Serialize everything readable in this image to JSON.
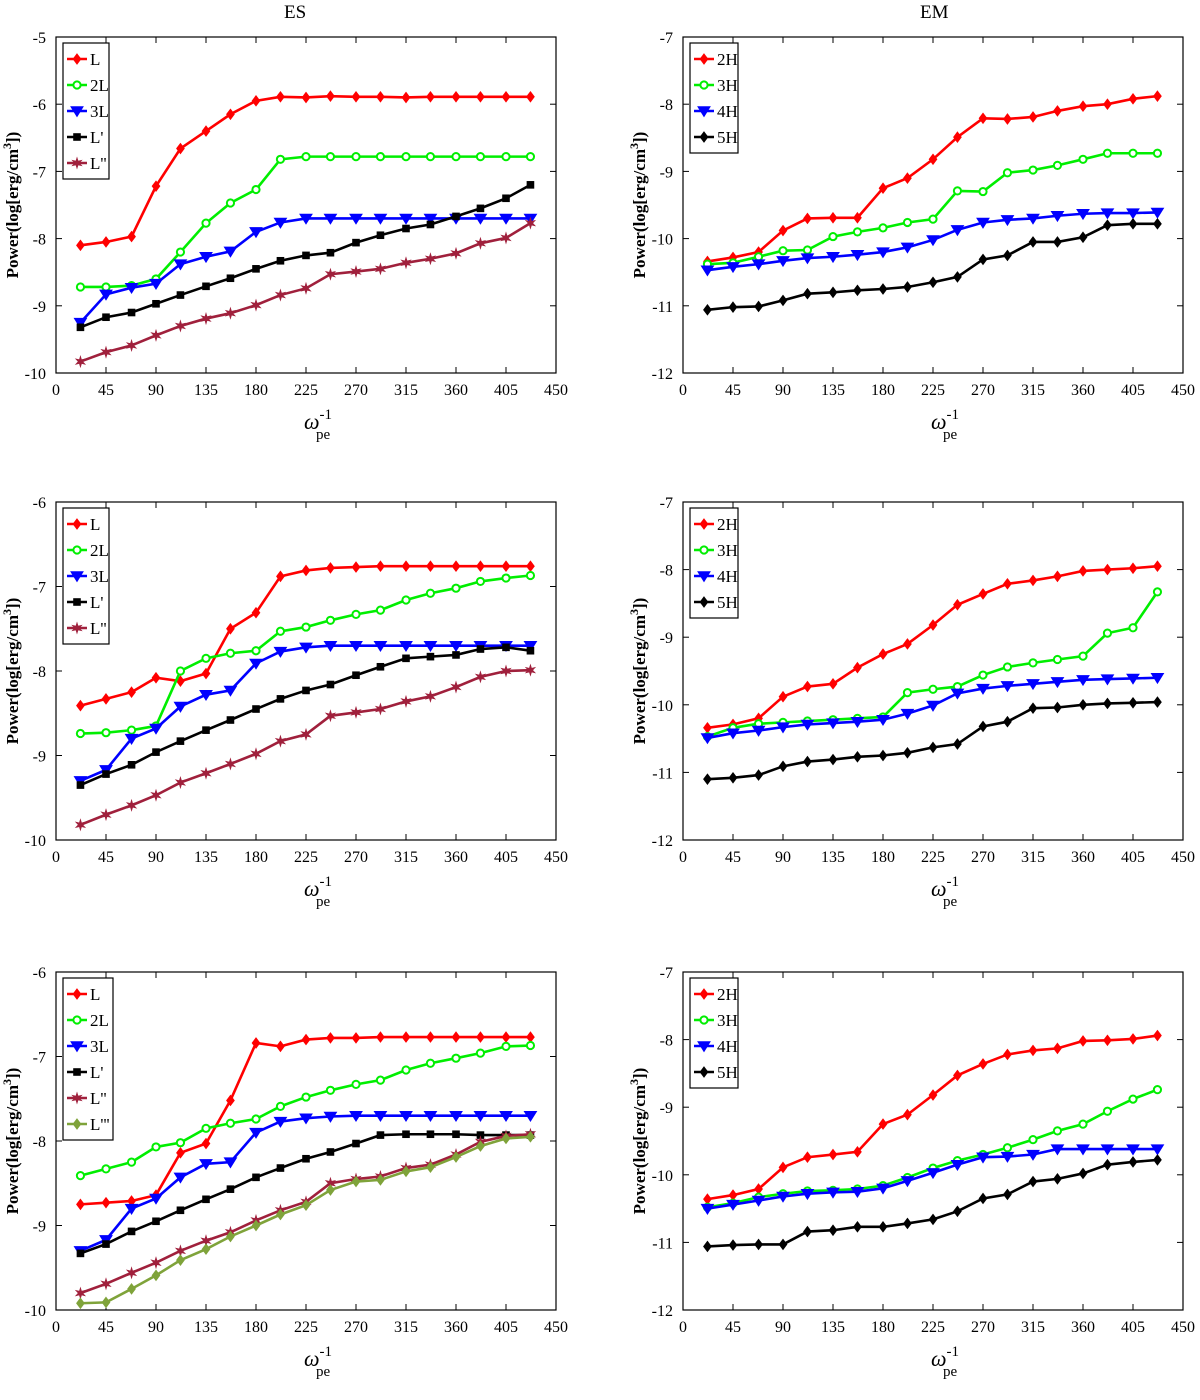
{
  "column_titles": [
    "ES",
    "EM"
  ],
  "chart_data": [
    {
      "type": "line",
      "title": "ES",
      "xlabel": "ω_pe^-1",
      "ylabel": "Power(log[erg/cm^3])",
      "xlim": [
        0,
        450
      ],
      "ylim": [
        -10,
        -5
      ],
      "xticks": [
        0,
        45,
        90,
        135,
        180,
        225,
        270,
        315,
        360,
        405,
        450
      ],
      "yticks": [
        -10,
        -9,
        -8,
        -7,
        -6,
        -5
      ],
      "grid": false,
      "legend_position": "top-left",
      "x": [
        22,
        45,
        68,
        90,
        112,
        135,
        157,
        180,
        202,
        225,
        247,
        270,
        292,
        315,
        337,
        360,
        382,
        405,
        427
      ],
      "series": [
        {
          "name": "L",
          "color": "#ff0000",
          "marker": "diamond",
          "values": [
            -8.1,
            -8.05,
            -7.97,
            -7.22,
            -6.66,
            -6.4,
            -6.15,
            -5.95,
            -5.89,
            -5.9,
            -5.88,
            -5.89,
            -5.89,
            -5.9,
            -5.89,
            -5.89,
            -5.89,
            -5.89,
            -5.89
          ]
        },
        {
          "name": "2L",
          "color": "#00ee00",
          "marker": "circle",
          "values": [
            -8.72,
            -8.72,
            -8.7,
            -8.6,
            -8.2,
            -7.77,
            -7.47,
            -7.27,
            -6.82,
            -6.78,
            -6.78,
            -6.78,
            -6.78,
            -6.78,
            -6.78,
            -6.78,
            -6.78,
            -6.78,
            -6.78
          ]
        },
        {
          "name": "3L",
          "color": "#0000ff",
          "marker": "triangle-down",
          "values": [
            -9.25,
            -8.83,
            -8.73,
            -8.67,
            -8.38,
            -8.27,
            -8.19,
            -7.9,
            -7.76,
            -7.7,
            -7.7,
            -7.7,
            -7.7,
            -7.7,
            -7.7,
            -7.7,
            -7.7,
            -7.7,
            -7.7
          ]
        },
        {
          "name": "L'",
          "color": "#000000",
          "marker": "square",
          "values": [
            -9.32,
            -9.17,
            -9.1,
            -8.97,
            -8.84,
            -8.71,
            -8.59,
            -8.45,
            -8.33,
            -8.25,
            -8.21,
            -8.06,
            -7.95,
            -7.85,
            -7.79,
            -7.67,
            -7.55,
            -7.4,
            -7.2
          ]
        },
        {
          "name": "L''",
          "color": "#a0203c",
          "marker": "star",
          "values": [
            -9.83,
            -9.69,
            -9.59,
            -9.44,
            -9.3,
            -9.19,
            -9.11,
            -8.99,
            -8.84,
            -8.74,
            -8.53,
            -8.49,
            -8.45,
            -8.36,
            -8.3,
            -8.22,
            -8.07,
            -7.99,
            -7.77
          ]
        }
      ]
    },
    {
      "type": "line",
      "title": "EM",
      "xlabel": "ω_pe^-1",
      "ylabel": "Power(log[erg/cm^3])",
      "xlim": [
        0,
        450
      ],
      "ylim": [
        -12,
        -7
      ],
      "xticks": [
        0,
        45,
        90,
        135,
        180,
        225,
        270,
        315,
        360,
        405,
        450
      ],
      "yticks": [
        -12,
        -11,
        -10,
        -9,
        -8,
        -7
      ],
      "grid": false,
      "legend_position": "top-left",
      "x": [
        22,
        45,
        68,
        90,
        112,
        135,
        157,
        180,
        202,
        225,
        247,
        270,
        292,
        315,
        337,
        360,
        382,
        405,
        427
      ],
      "series": [
        {
          "name": "2H",
          "color": "#ff0000",
          "marker": "diamond",
          "values": [
            -10.34,
            -10.28,
            -10.2,
            -9.88,
            -9.7,
            -9.69,
            -9.69,
            -9.25,
            -9.1,
            -8.82,
            -8.49,
            -8.21,
            -8.22,
            -8.19,
            -8.1,
            -8.03,
            -8.0,
            -7.92,
            -7.88
          ]
        },
        {
          "name": "3H",
          "color": "#00ee00",
          "marker": "circle",
          "values": [
            -10.38,
            -10.36,
            -10.27,
            -10.18,
            -10.17,
            -9.97,
            -9.9,
            -9.84,
            -9.76,
            -9.71,
            -9.29,
            -9.3,
            -9.02,
            -8.98,
            -8.91,
            -8.82,
            -8.73,
            -8.73,
            -8.73
          ]
        },
        {
          "name": "4H",
          "color": "#0000ff",
          "marker": "triangle-down",
          "values": [
            -10.47,
            -10.42,
            -10.38,
            -10.33,
            -10.29,
            -10.27,
            -10.24,
            -10.2,
            -10.13,
            -10.02,
            -9.87,
            -9.76,
            -9.72,
            -9.7,
            -9.66,
            -9.63,
            -9.62,
            -9.62,
            -9.61
          ]
        },
        {
          "name": "5H",
          "color": "#000000",
          "marker": "diamond",
          "values": [
            -11.06,
            -11.02,
            -11.01,
            -10.92,
            -10.82,
            -10.8,
            -10.77,
            -10.75,
            -10.72,
            -10.65,
            -10.57,
            -10.31,
            -10.25,
            -10.05,
            -10.05,
            -9.98,
            -9.8,
            -9.78,
            -9.78
          ]
        }
      ]
    },
    {
      "type": "line",
      "xlabel": "ω_pe^-1",
      "ylabel": "Power(log[erg/cm^3])",
      "xlim": [
        0,
        450
      ],
      "ylim": [
        -10,
        -6
      ],
      "xticks": [
        0,
        45,
        90,
        135,
        180,
        225,
        270,
        315,
        360,
        405,
        450
      ],
      "yticks": [
        -10,
        -9,
        -8,
        -7,
        -6
      ],
      "grid": false,
      "legend_position": "top-left",
      "x": [
        22,
        45,
        68,
        90,
        112,
        135,
        157,
        180,
        202,
        225,
        247,
        270,
        292,
        315,
        337,
        360,
        382,
        405,
        427
      ],
      "series": [
        {
          "name": "L",
          "color": "#ff0000",
          "marker": "diamond",
          "values": [
            -8.41,
            -8.33,
            -8.25,
            -8.08,
            -8.12,
            -8.03,
            -7.5,
            -7.31,
            -6.88,
            -6.81,
            -6.78,
            -6.77,
            -6.76,
            -6.76,
            -6.76,
            -6.76,
            -6.76,
            -6.76,
            -6.76
          ]
        },
        {
          "name": "2L",
          "color": "#00ee00",
          "marker": "circle",
          "values": [
            -8.74,
            -8.73,
            -8.7,
            -8.65,
            -8.0,
            -7.85,
            -7.79,
            -7.76,
            -7.53,
            -7.48,
            -7.4,
            -7.33,
            -7.28,
            -7.16,
            -7.08,
            -7.02,
            -6.94,
            -6.9,
            -6.87
          ]
        },
        {
          "name": "3L",
          "color": "#0000ff",
          "marker": "triangle-down",
          "values": [
            -9.3,
            -9.17,
            -8.8,
            -8.68,
            -8.42,
            -8.28,
            -8.23,
            -7.91,
            -7.77,
            -7.72,
            -7.7,
            -7.7,
            -7.7,
            -7.7,
            -7.7,
            -7.7,
            -7.7,
            -7.7,
            -7.7
          ]
        },
        {
          "name": "L'",
          "color": "#000000",
          "marker": "square",
          "values": [
            -9.35,
            -9.22,
            -9.11,
            -8.96,
            -8.83,
            -8.7,
            -8.58,
            -8.45,
            -8.33,
            -8.23,
            -8.16,
            -8.05,
            -7.95,
            -7.85,
            -7.83,
            -7.81,
            -7.74,
            -7.72,
            -7.76
          ]
        },
        {
          "name": "L''",
          "color": "#a0203c",
          "marker": "star",
          "values": [
            -9.82,
            -9.7,
            -9.59,
            -9.47,
            -9.32,
            -9.21,
            -9.1,
            -8.98,
            -8.83,
            -8.75,
            -8.53,
            -8.49,
            -8.45,
            -8.36,
            -8.3,
            -8.19,
            -8.07,
            -8.0,
            -7.99
          ]
        }
      ]
    },
    {
      "type": "line",
      "xlabel": "ω_pe^-1",
      "ylabel": "Power(log[erg/cm^3])",
      "xlim": [
        0,
        450
      ],
      "ylim": [
        -12,
        -7
      ],
      "xticks": [
        0,
        45,
        90,
        135,
        180,
        225,
        270,
        315,
        360,
        405,
        450
      ],
      "yticks": [
        -12,
        -11,
        -10,
        -9,
        -8,
        -7
      ],
      "grid": false,
      "legend_position": "top-left",
      "x": [
        22,
        45,
        68,
        90,
        112,
        135,
        157,
        180,
        202,
        225,
        247,
        270,
        292,
        315,
        337,
        360,
        382,
        405,
        427
      ],
      "series": [
        {
          "name": "2H",
          "color": "#ff0000",
          "marker": "diamond",
          "values": [
            -10.34,
            -10.29,
            -10.2,
            -9.88,
            -9.73,
            -9.69,
            -9.45,
            -9.25,
            -9.1,
            -8.82,
            -8.52,
            -8.36,
            -8.21,
            -8.16,
            -8.1,
            -8.02,
            -8.0,
            -7.98,
            -7.95
          ]
        },
        {
          "name": "3H",
          "color": "#00ee00",
          "marker": "circle",
          "values": [
            -10.47,
            -10.34,
            -10.28,
            -10.26,
            -10.24,
            -10.22,
            -10.2,
            -10.18,
            -9.82,
            -9.77,
            -9.73,
            -9.56,
            -9.44,
            -9.38,
            -9.33,
            -9.28,
            -8.94,
            -8.86,
            -8.33
          ]
        },
        {
          "name": "4H",
          "color": "#0000ff",
          "marker": "triangle-down",
          "values": [
            -10.49,
            -10.42,
            -10.38,
            -10.33,
            -10.29,
            -10.27,
            -10.25,
            -10.22,
            -10.13,
            -10.01,
            -9.83,
            -9.76,
            -9.72,
            -9.69,
            -9.66,
            -9.63,
            -9.62,
            -9.61,
            -9.6
          ]
        },
        {
          "name": "5H",
          "color": "#000000",
          "marker": "diamond",
          "values": [
            -11.1,
            -11.08,
            -11.04,
            -10.91,
            -10.84,
            -10.81,
            -10.77,
            -10.75,
            -10.71,
            -10.63,
            -10.58,
            -10.32,
            -10.25,
            -10.05,
            -10.04,
            -10.0,
            -9.98,
            -9.97,
            -9.96
          ]
        }
      ]
    },
    {
      "type": "line",
      "xlabel": "ω_pe^-1",
      "ylabel": "Power(log[erg/cm^3])",
      "xlim": [
        0,
        450
      ],
      "ylim": [
        -10,
        -6
      ],
      "xticks": [
        0,
        45,
        90,
        135,
        180,
        225,
        270,
        315,
        360,
        405,
        450
      ],
      "yticks": [
        -10,
        -9,
        -8,
        -7,
        -6
      ],
      "grid": false,
      "legend_position": "top-left",
      "x": [
        22,
        45,
        68,
        90,
        112,
        135,
        157,
        180,
        202,
        225,
        247,
        270,
        292,
        315,
        337,
        360,
        382,
        405,
        427
      ],
      "series": [
        {
          "name": "L",
          "color": "#ff0000",
          "marker": "diamond",
          "values": [
            -8.75,
            -8.73,
            -8.71,
            -8.64,
            -8.14,
            -8.03,
            -7.52,
            -6.84,
            -6.88,
            -6.8,
            -6.78,
            -6.78,
            -6.77,
            -6.77,
            -6.77,
            -6.77,
            -6.77,
            -6.77,
            -6.77
          ]
        },
        {
          "name": "2L",
          "color": "#00ee00",
          "marker": "circle",
          "values": [
            -8.41,
            -8.33,
            -8.25,
            -8.07,
            -8.02,
            -7.85,
            -7.79,
            -7.74,
            -7.59,
            -7.48,
            -7.4,
            -7.33,
            -7.28,
            -7.16,
            -7.08,
            -7.02,
            -6.96,
            -6.88,
            -6.87
          ]
        },
        {
          "name": "3L",
          "color": "#0000ff",
          "marker": "triangle-down",
          "values": [
            -9.3,
            -9.17,
            -8.8,
            -8.68,
            -8.43,
            -8.27,
            -8.25,
            -7.9,
            -7.77,
            -7.73,
            -7.71,
            -7.7,
            -7.7,
            -7.7,
            -7.7,
            -7.7,
            -7.7,
            -7.7,
            -7.7
          ]
        },
        {
          "name": "L'",
          "color": "#000000",
          "marker": "square",
          "values": [
            -9.33,
            -9.22,
            -9.07,
            -8.95,
            -8.82,
            -8.69,
            -8.57,
            -8.43,
            -8.32,
            -8.21,
            -8.13,
            -8.03,
            -7.93,
            -7.92,
            -7.92,
            -7.92,
            -7.93,
            -7.93,
            -7.93
          ]
        },
        {
          "name": "L''",
          "color": "#a0203c",
          "marker": "star",
          "values": [
            -9.8,
            -9.69,
            -9.56,
            -9.44,
            -9.3,
            -9.18,
            -9.08,
            -8.94,
            -8.82,
            -8.72,
            -8.5,
            -8.45,
            -8.42,
            -8.32,
            -8.28,
            -8.16,
            -8.01,
            -7.94,
            -7.92
          ]
        },
        {
          "name": "L'''",
          "color": "#7fa33a",
          "marker": "diamond",
          "values": [
            -9.92,
            -9.91,
            -9.75,
            -9.59,
            -9.41,
            -9.28,
            -9.13,
            -9.0,
            -8.87,
            -8.76,
            -8.58,
            -8.48,
            -8.46,
            -8.36,
            -8.31,
            -8.19,
            -8.06,
            -7.97,
            -7.95
          ]
        }
      ]
    },
    {
      "type": "line",
      "xlabel": "ω_pe^-1",
      "ylabel": "Power(log[erg/cm^3])",
      "xlim": [
        0,
        450
      ],
      "ylim": [
        -12,
        -7
      ],
      "xticks": [
        0,
        45,
        90,
        135,
        180,
        225,
        270,
        315,
        360,
        405,
        450
      ],
      "yticks": [
        -12,
        -11,
        -10,
        -9,
        -8,
        -7
      ],
      "grid": false,
      "legend_position": "top-left",
      "x": [
        22,
        45,
        68,
        90,
        112,
        135,
        157,
        180,
        202,
        225,
        247,
        270,
        292,
        315,
        337,
        360,
        382,
        405,
        427
      ],
      "series": [
        {
          "name": "2H",
          "color": "#ff0000",
          "marker": "diamond",
          "values": [
            -10.36,
            -10.3,
            -10.21,
            -9.89,
            -9.74,
            -9.7,
            -9.66,
            -9.25,
            -9.11,
            -8.82,
            -8.53,
            -8.36,
            -8.22,
            -8.16,
            -8.13,
            -8.02,
            -8.01,
            -7.99,
            -7.94
          ]
        },
        {
          "name": "3H",
          "color": "#00ee00",
          "marker": "circle",
          "values": [
            -10.48,
            -10.42,
            -10.33,
            -10.28,
            -10.24,
            -10.23,
            -10.21,
            -10.16,
            -10.04,
            -9.9,
            -9.79,
            -9.7,
            -9.6,
            -9.48,
            -9.35,
            -9.25,
            -9.06,
            -8.88,
            -8.74
          ]
        },
        {
          "name": "4H",
          "color": "#0000ff",
          "marker": "triangle-down",
          "values": [
            -10.5,
            -10.44,
            -10.38,
            -10.32,
            -10.28,
            -10.26,
            -10.25,
            -10.2,
            -10.09,
            -9.97,
            -9.85,
            -9.74,
            -9.73,
            -9.7,
            -9.62,
            -9.62,
            -9.62,
            -9.62,
            -9.62
          ]
        },
        {
          "name": "5H",
          "color": "#000000",
          "marker": "diamond",
          "values": [
            -11.06,
            -11.04,
            -11.03,
            -11.03,
            -10.84,
            -10.82,
            -10.77,
            -10.77,
            -10.72,
            -10.66,
            -10.54,
            -10.35,
            -10.29,
            -10.1,
            -10.06,
            -9.98,
            -9.85,
            -9.81,
            -9.78
          ]
        }
      ]
    }
  ]
}
